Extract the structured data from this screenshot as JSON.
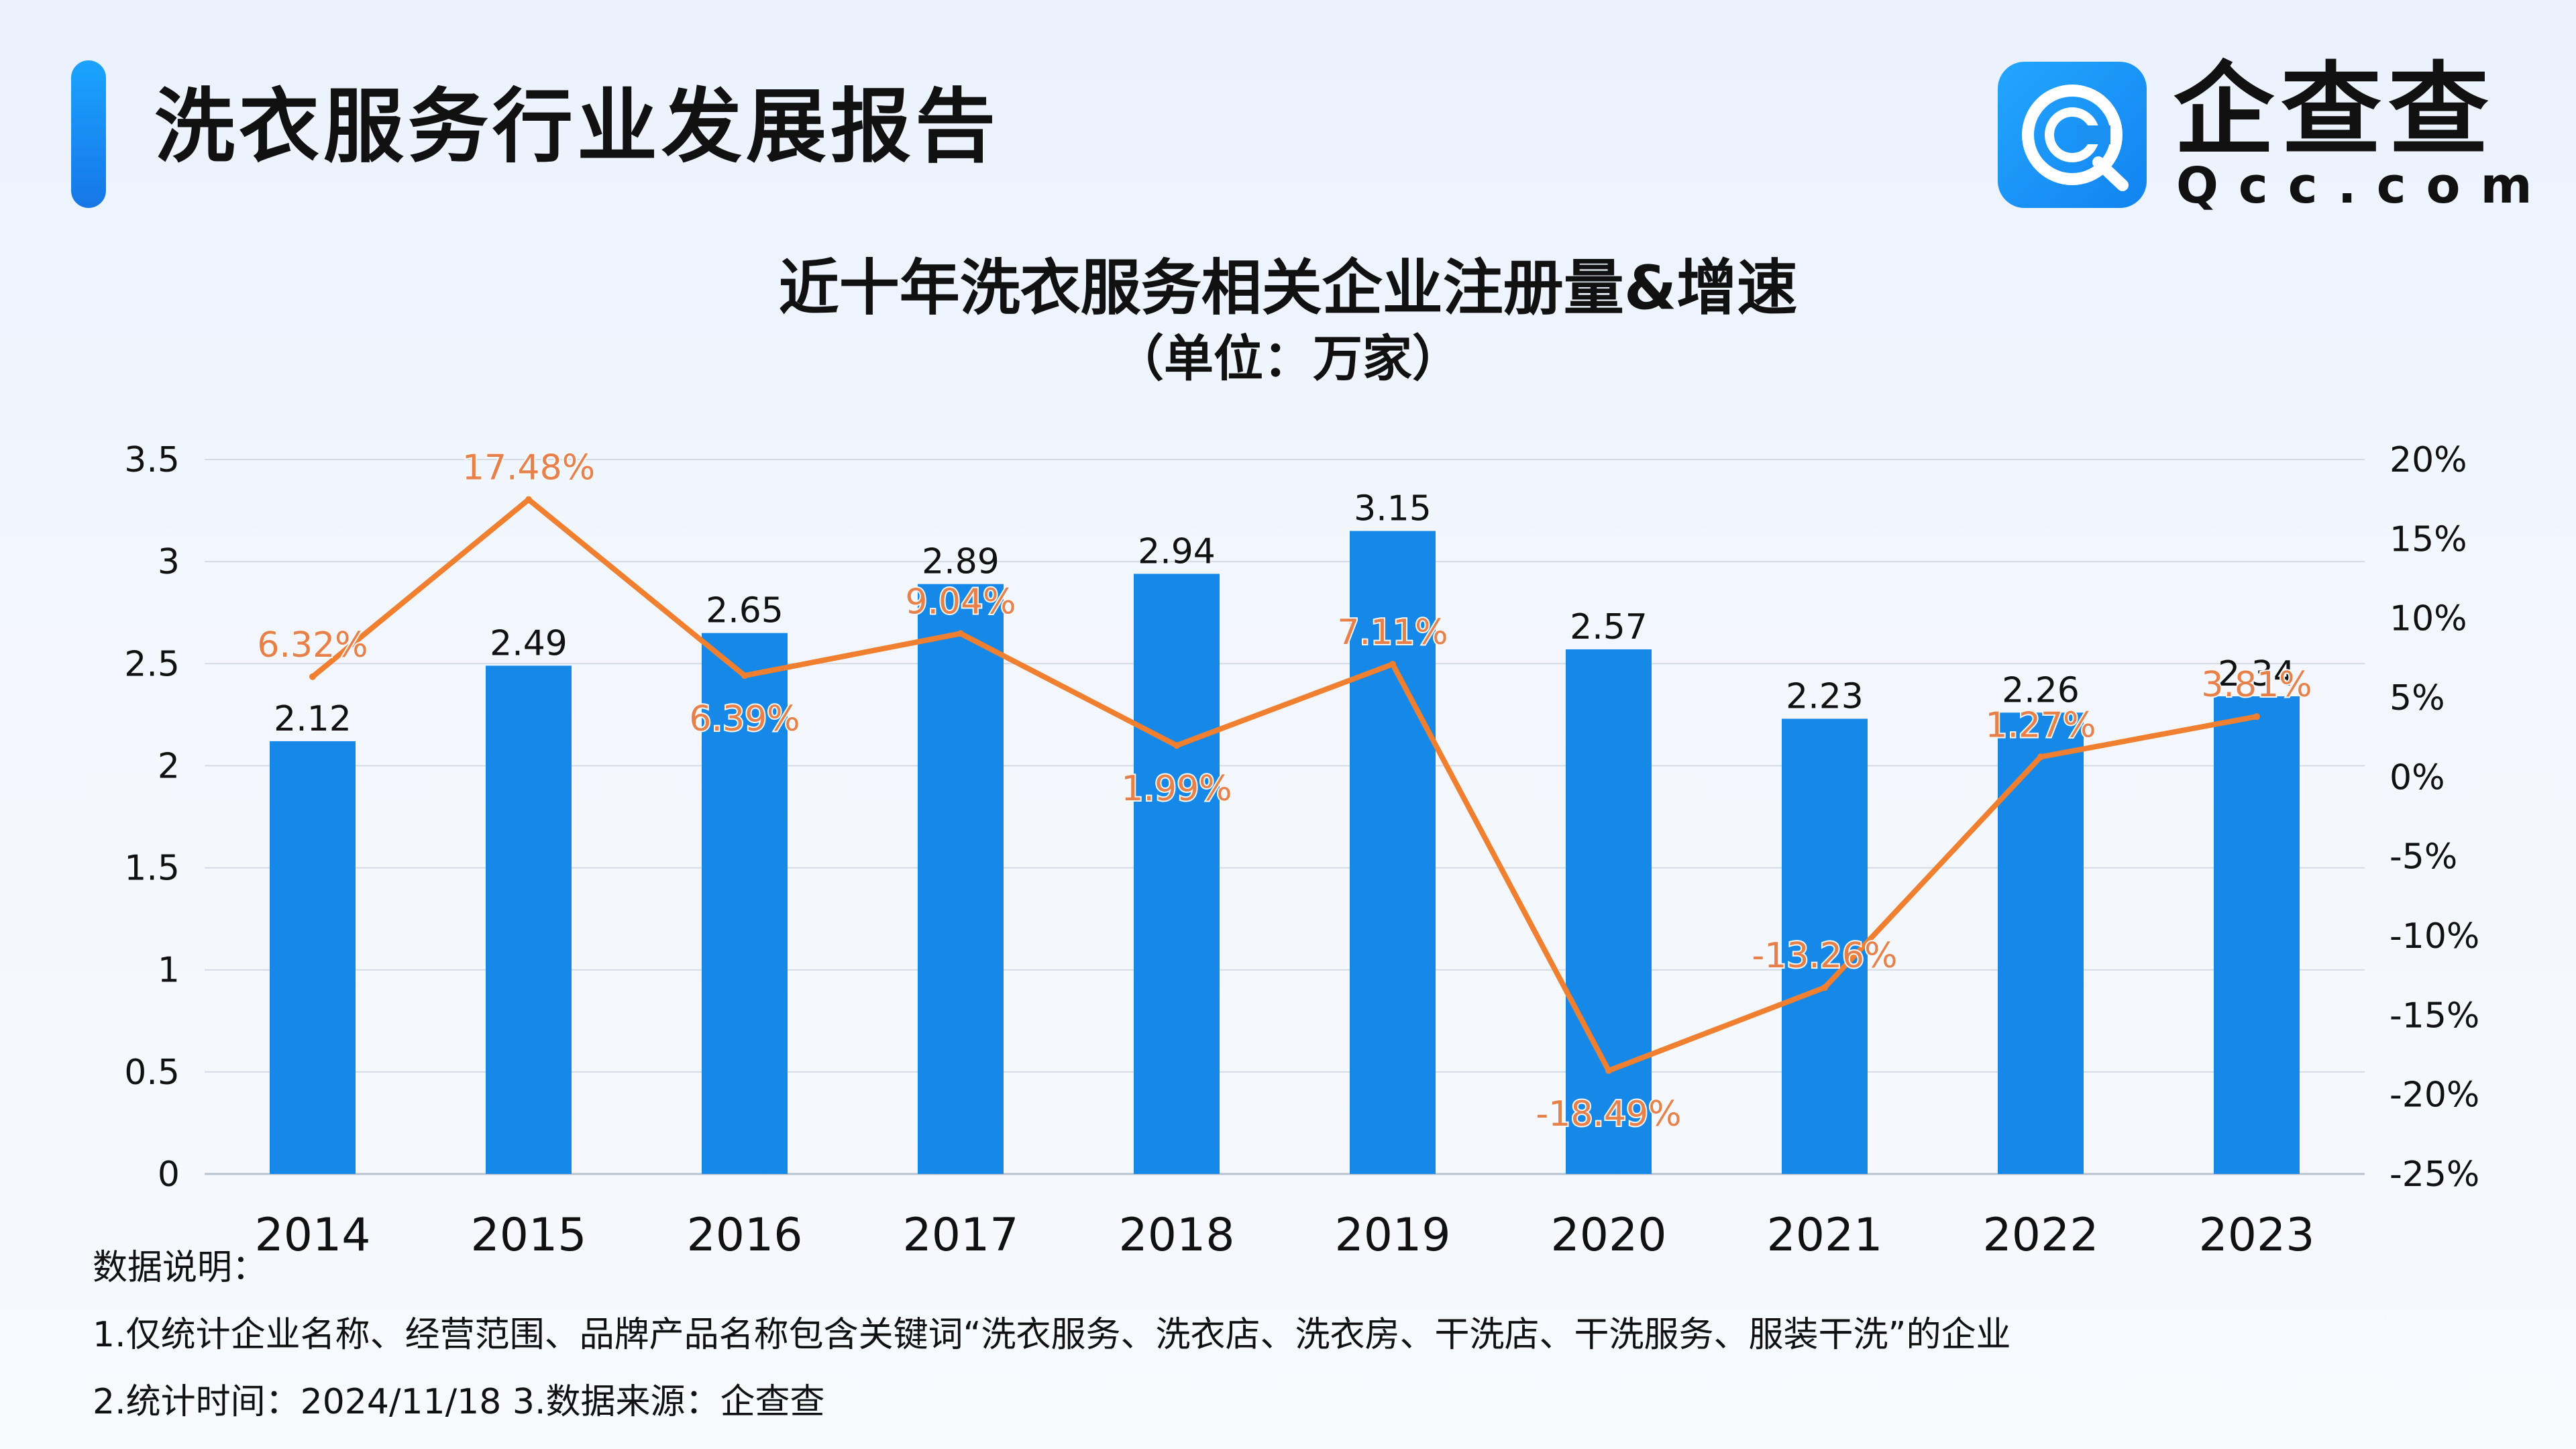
{
  "header": {
    "title": "洗衣服务行业发展报告",
    "brand_name": "企查查",
    "brand_domain": "Qcc.com"
  },
  "icons": {
    "logo": "qcc-logo-icon"
  },
  "colors": {
    "accent": "#1677e6",
    "bar": "#1588e8",
    "line": "#f07f2f",
    "growth_label": "#e8804a"
  },
  "chart_data": {
    "type": "bar",
    "title": "近十年洗衣服务相关企业注册量&增速",
    "subtitle": "（单位：万家）",
    "categories": [
      "2014",
      "2015",
      "2016",
      "2017",
      "2018",
      "2019",
      "2020",
      "2021",
      "2022",
      "2023"
    ],
    "series": [
      {
        "type": "bar",
        "axis": "left",
        "values": [
          2.12,
          2.49,
          2.65,
          2.89,
          2.94,
          3.15,
          2.57,
          2.23,
          2.26,
          2.34
        ],
        "labels": [
          "2.12",
          "2.49",
          "2.65",
          "2.89",
          "2.94",
          "3.15",
          "2.57",
          "2.23",
          "2.26",
          "2.34"
        ]
      },
      {
        "type": "line",
        "axis": "right",
        "values": [
          6.32,
          17.48,
          6.39,
          9.04,
          1.99,
          7.11,
          -18.49,
          -13.26,
          1.27,
          3.81
        ],
        "labels": [
          "6.32%",
          "17.48%",
          "6.39%",
          "9.04%",
          "1.99%",
          "7.11%",
          "-18.49%",
          "-13.26%",
          "1.27%",
          "3.81%"
        ]
      }
    ],
    "y_left": {
      "range": [
        0,
        3.5
      ],
      "ticks": [
        "0",
        "0.5",
        "1",
        "1.5",
        "2",
        "2.5",
        "3",
        "3.5"
      ]
    },
    "y_right": {
      "range": [
        -25,
        20
      ],
      "ticks": [
        "-25%",
        "-20%",
        "-15%",
        "-10%",
        "-5%",
        "0%",
        "5%",
        "10%",
        "15%",
        "20%"
      ]
    },
    "grid": true,
    "legend": "none"
  },
  "notes": {
    "heading": "数据说明：",
    "line1": "1.仅统计企业名称、经营范围、品牌产品名称包含关键词“洗衣服务、洗衣店、洗衣房、干洗店、干洗服务、服装干洗”的企业",
    "line2": "2.统计时间：2024/11/18    3.数据来源：企查查"
  }
}
